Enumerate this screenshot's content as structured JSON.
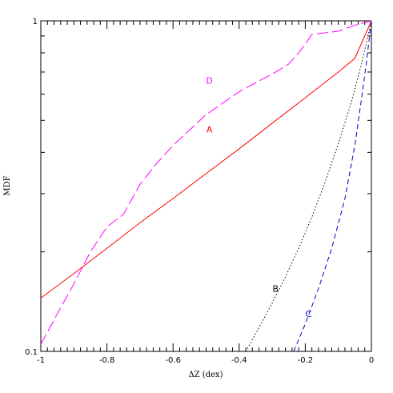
{
  "chart_data": {
    "type": "line",
    "xlabel": "ΔZ (dex)",
    "ylabel": "MDF",
    "xlim": [
      -1,
      0
    ],
    "ylim": [
      0.1,
      1
    ],
    "yscale": "log",
    "grid": false,
    "legend": "none",
    "x_ticks": [
      "-1",
      "-0.8",
      "-0.6",
      "-0.4",
      "-0.2",
      "0"
    ],
    "y_ticks": [
      "0.1",
      "1"
    ],
    "series": [
      {
        "name": "A",
        "color": "#ff0000",
        "dash": "solid",
        "x": [
          -1.0,
          -0.9,
          -0.8,
          -0.7,
          -0.6,
          -0.5,
          -0.4,
          -0.3,
          -0.2,
          -0.1,
          -0.05,
          0.0
        ],
        "y": [
          0.145,
          0.172,
          0.205,
          0.245,
          0.29,
          0.345,
          0.41,
          0.49,
          0.585,
          0.7,
          0.77,
          1.0
        ],
        "label_at": [
          -0.49,
          0.47
        ]
      },
      {
        "name": "B",
        "color": "#000000",
        "dash": "dotted",
        "x": [
          -0.38,
          -0.34,
          -0.3,
          -0.26,
          -0.22,
          -0.18,
          -0.14,
          -0.1,
          -0.06,
          -0.03,
          0.0
        ],
        "y": [
          0.1,
          0.118,
          0.14,
          0.168,
          0.205,
          0.255,
          0.325,
          0.425,
          0.57,
          0.74,
          1.0
        ],
        "label_at": [
          -0.29,
          0.155
        ]
      },
      {
        "name": "C",
        "color": "#0000cc",
        "dash": "dashed",
        "x": [
          -0.235,
          -0.2,
          -0.16,
          -0.12,
          -0.08,
          -0.05,
          -0.03,
          -0.015,
          0.0
        ],
        "y": [
          0.1,
          0.121,
          0.155,
          0.205,
          0.29,
          0.42,
          0.58,
          0.75,
          1.0
        ],
        "label_at": [
          -0.19,
          0.13
        ]
      },
      {
        "name": "D",
        "color": "#ff00ff",
        "dash": "longdash",
        "x": [
          -1.0,
          -0.95,
          -0.9,
          -0.85,
          -0.8,
          -0.75,
          -0.7,
          -0.65,
          -0.6,
          -0.5,
          -0.4,
          -0.35,
          -0.3,
          -0.25,
          -0.22,
          -0.2,
          -0.18,
          -0.1,
          -0.05,
          0.0
        ],
        "y": [
          0.105,
          0.13,
          0.16,
          0.2,
          0.238,
          0.26,
          0.32,
          0.37,
          0.42,
          0.52,
          0.61,
          0.65,
          0.69,
          0.74,
          0.8,
          0.85,
          0.91,
          0.93,
          0.97,
          1.0
        ],
        "label_at": [
          -0.49,
          0.66
        ]
      }
    ]
  }
}
